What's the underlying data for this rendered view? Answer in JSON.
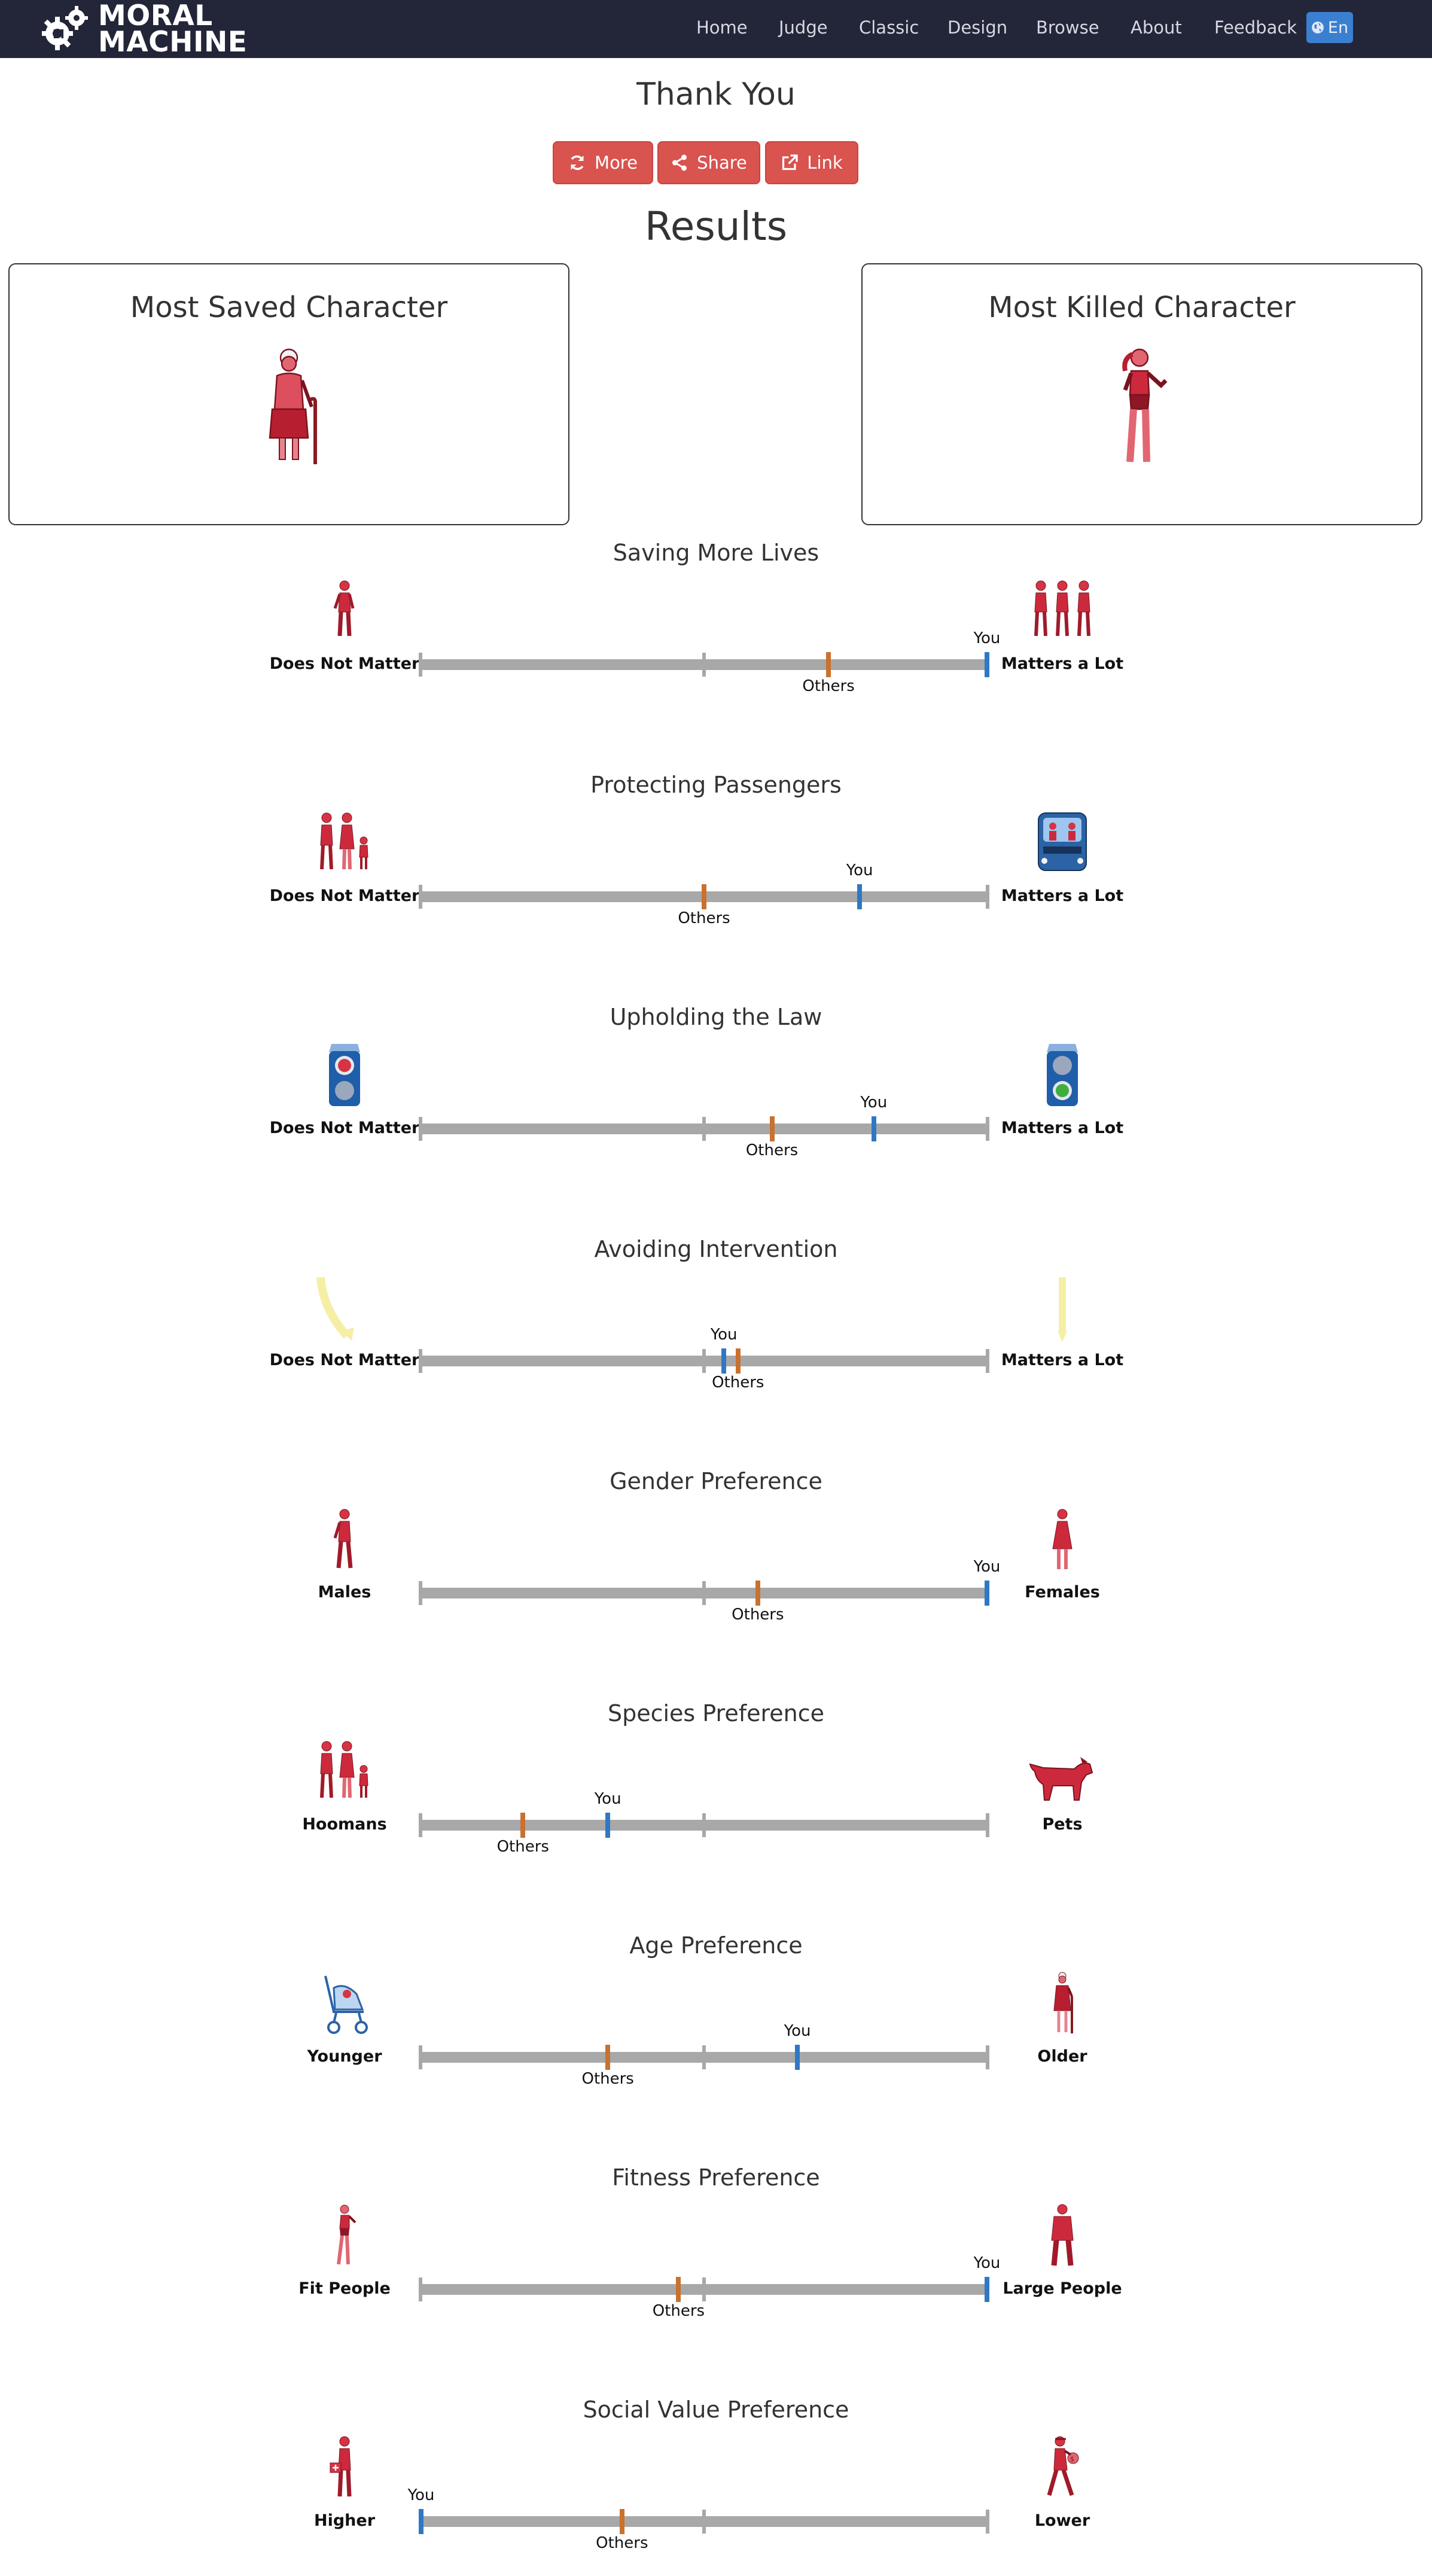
{
  "navbar": {
    "brand": [
      "MORAL",
      "MACHINE"
    ],
    "items": [
      {
        "label": "Home"
      },
      {
        "label": "Judge"
      },
      {
        "label": "Classic"
      },
      {
        "label": "Design"
      },
      {
        "label": "Browse"
      },
      {
        "label": "About"
      },
      {
        "label": "Feedback"
      }
    ],
    "language": "En"
  },
  "header": {
    "title": "Thank You",
    "results": "Results"
  },
  "buttons": {
    "more": "More",
    "share": "Share",
    "link": "Link"
  },
  "panels": {
    "saved": "Most Saved Character",
    "killed": "Most Killed Character"
  },
  "markers": {
    "you": "You",
    "others": "Others"
  },
  "preferences": [
    {
      "title": "Saving More Lives",
      "left": "Does Not Matter",
      "right": "Matters a Lot",
      "left_icon": "single-person-icon",
      "right_icon": "three-people-icon",
      "you": 1.0,
      "others": 0.72
    },
    {
      "title": "Protecting Passengers",
      "left": "Does Not Matter",
      "right": "Matters a Lot",
      "left_icon": "pedestrian-group-icon",
      "right_icon": "car-passengers-icon",
      "you": 0.775,
      "others": 0.5
    },
    {
      "title": "Upholding the Law",
      "left": "Does Not Matter",
      "right": "Matters a Lot",
      "left_icon": "red-signal-icon",
      "right_icon": "green-signal-icon",
      "you": 0.8,
      "others": 0.62
    },
    {
      "title": "Avoiding Intervention",
      "left": "Does Not Matter",
      "right": "Matters a Lot",
      "left_icon": "swerve-arrow-icon",
      "right_icon": "straight-arrow-icon",
      "you": 0.535,
      "others": 0.56
    },
    {
      "title": "Gender Preference",
      "left": "Males",
      "right": "Females",
      "left_icon": "male-icon",
      "right_icon": "female-icon",
      "you": 1.0,
      "others": 0.595
    },
    {
      "title": "Species Preference",
      "left": "Hoomans",
      "right": "Pets",
      "left_icon": "humans-icon",
      "right_icon": "dog-icon",
      "you": 0.33,
      "others": 0.18
    },
    {
      "title": "Age Preference",
      "left": "Younger",
      "right": "Older",
      "left_icon": "stroller-icon",
      "right_icon": "elderly-icon",
      "you": 0.665,
      "others": 0.33
    },
    {
      "title": "Fitness Preference",
      "left": "Fit People",
      "right": "Large People",
      "left_icon": "athlete-icon",
      "right_icon": "large-person-icon",
      "you": 1.0,
      "others": 0.455
    },
    {
      "title": "Social Value Preference",
      "left": "Higher",
      "right": "Lower",
      "left_icon": "doctor-icon",
      "right_icon": "criminal-icon",
      "you": 0.0,
      "others": 0.355
    }
  ]
}
